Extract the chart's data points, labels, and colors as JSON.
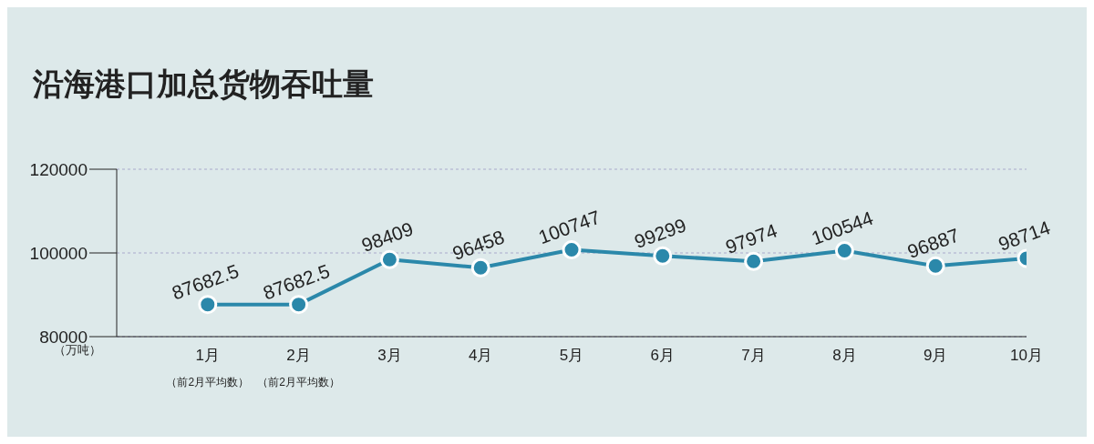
{
  "chart_data": {
    "type": "line",
    "title": "沿海港口加总货物吞吐量",
    "ylabel": "（万吨）",
    "categories": [
      "1月",
      "2月",
      "3月",
      "4月",
      "5月",
      "6月",
      "7月",
      "8月",
      "9月",
      "10月"
    ],
    "series": [
      {
        "color": "#2b88aa",
        "values": [
          87682.5,
          87682.5,
          98409,
          96458,
          100747,
          99299,
          97974,
          100544,
          96887,
          98714
        ]
      }
    ],
    "annotations": [
      "（前2月平均数）",
      "（前2月平均数）"
    ],
    "ylim": [
      80000,
      120000
    ],
    "yticks": [
      80000,
      100000,
      120000
    ],
    "grid": "y",
    "marker": "circle",
    "line_style": "solid",
    "data_labels": true,
    "legend": false
  }
}
